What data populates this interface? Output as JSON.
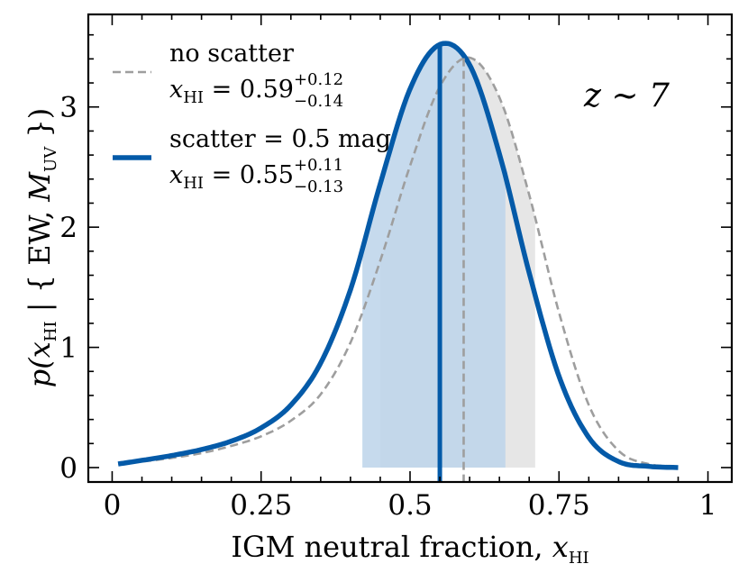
{
  "chart_data": {
    "type": "line",
    "xlabel": {
      "main": "IGM neutral fraction, ",
      "var": "x",
      "sub": "HI"
    },
    "ylabel": {
      "p": "p(",
      "var": "x",
      "sub": "HI",
      "mid": " | { EW, ",
      "M": "M",
      "msub": "UV",
      "end": " })"
    },
    "xlim": [
      -0.04,
      1.04
    ],
    "ylim": [
      -0.12,
      3.77
    ],
    "xticks": [
      0,
      0.25,
      0.5,
      0.75,
      1
    ],
    "xtick_labels": [
      "0",
      "0.25",
      "0.5",
      "0.75",
      "1"
    ],
    "yticks": [
      0,
      1,
      2,
      3
    ],
    "ytick_labels": [
      "0",
      "1",
      "2",
      "3"
    ],
    "annotation": "z ~ 7",
    "legend_position": "top-left",
    "series": [
      {
        "name": "no scatter",
        "stat": {
          "var": "x",
          "sub": "HI",
          "eq": " = 0.59",
          "plus": "+0.12",
          "minus": "−0.14"
        },
        "color": "#9e9e9e",
        "fill": "#e6e6e6",
        "style": "dashed",
        "median": 0.59,
        "interval": [
          0.45,
          0.71
        ],
        "x": [
          0.01,
          0.05,
          0.1,
          0.15,
          0.2,
          0.25,
          0.3,
          0.35,
          0.4,
          0.45,
          0.5,
          0.55,
          0.6,
          0.65,
          0.7,
          0.75,
          0.8,
          0.85,
          0.9,
          0.95
        ],
        "y": [
          0.03,
          0.05,
          0.08,
          0.12,
          0.18,
          0.26,
          0.39,
          0.61,
          1.04,
          1.72,
          2.51,
          3.17,
          3.41,
          3.08,
          2.27,
          1.29,
          0.52,
          0.14,
          0.03,
          0.01
        ]
      },
      {
        "name": "scatter = 0.5 mag",
        "stat": {
          "var": "x",
          "sub": "HI",
          "eq": " = 0.55",
          "plus": "+0.11",
          "minus": "−0.13"
        },
        "color": "#045aa8",
        "fill": "#bcd3ea",
        "style": "solid",
        "median": 0.55,
        "interval": [
          0.42,
          0.66
        ],
        "x": [
          0.01,
          0.05,
          0.1,
          0.15,
          0.2,
          0.25,
          0.3,
          0.35,
          0.4,
          0.45,
          0.5,
          0.55,
          0.6,
          0.65,
          0.7,
          0.75,
          0.8,
          0.85,
          0.9,
          0.95
        ],
        "y": [
          0.03,
          0.06,
          0.1,
          0.15,
          0.22,
          0.33,
          0.52,
          0.87,
          1.48,
          2.36,
          3.15,
          3.52,
          3.35,
          2.61,
          1.62,
          0.76,
          0.25,
          0.05,
          0.01,
          0.0
        ]
      }
    ]
  }
}
